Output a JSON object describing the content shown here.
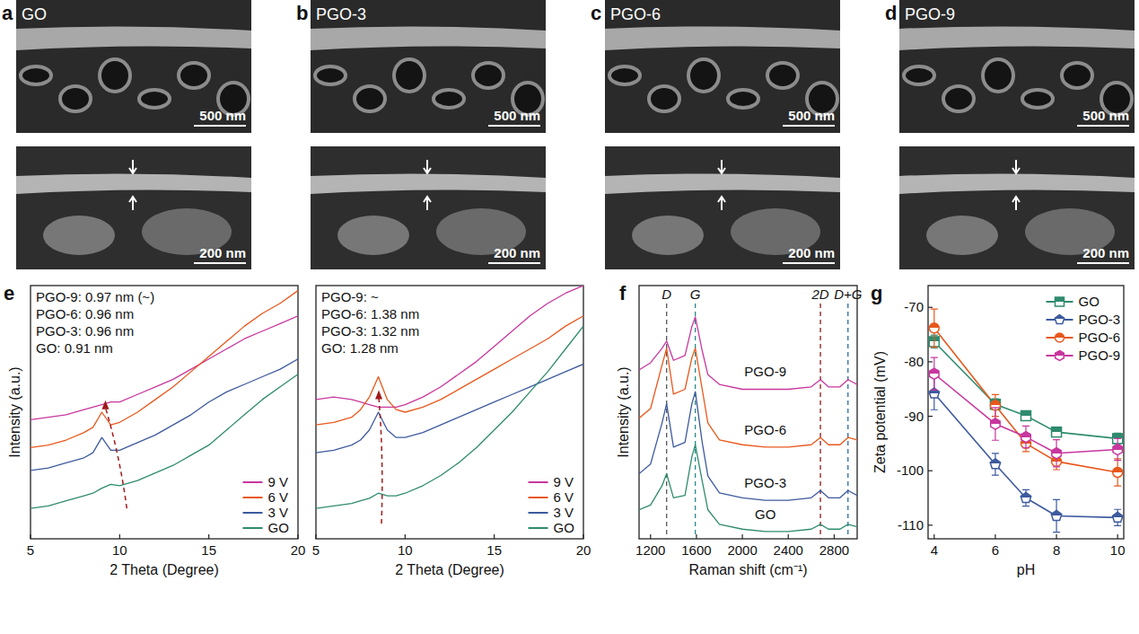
{
  "images": [
    {
      "panel": "a",
      "title": "GO",
      "scale_bars": [
        "500 nm",
        "200 nm"
      ]
    },
    {
      "panel": "b",
      "title": "PGO-3",
      "scale_bars": [
        "500 nm",
        "200 nm"
      ]
    },
    {
      "panel": "c",
      "title": "PGO-6",
      "scale_bars": [
        "500 nm",
        "200 nm"
      ]
    },
    {
      "panel": "d",
      "title": "PGO-9",
      "scale_bars": [
        "500 nm",
        "200 nm"
      ]
    }
  ],
  "chart_data": [
    {
      "type": "line",
      "panel": "e",
      "x_label": "2 Theta (Degree)",
      "y_label": "Intensity (a.u.)",
      "annotations": [
        "PGO-9: 0.97 nm (~)",
        "PGO-6: 0.96 nm",
        "PGO-3: 0.96 nm",
        "GO: 0.91 nm"
      ],
      "x": [
        5,
        6,
        7,
        8,
        8.5,
        9,
        9.5,
        10,
        11,
        12,
        13,
        14,
        15,
        16,
        17,
        18,
        19,
        20
      ],
      "xlim": [
        5,
        20
      ],
      "xticks": [
        5,
        10,
        15,
        20
      ],
      "ylim": [
        0,
        100
      ],
      "tick_labels": "x",
      "legend": "lower right",
      "series": [
        {
          "name": "9 V",
          "color": "#c8379e",
          "values": [
            47,
            48,
            49,
            51,
            52,
            53,
            54,
            54,
            57,
            60,
            63,
            67,
            71,
            75,
            79,
            82,
            85,
            88
          ]
        },
        {
          "name": "6 V",
          "color": "#e8581c",
          "values": [
            36,
            37,
            39,
            42,
            44,
            50,
            45,
            46,
            50,
            55,
            60,
            66,
            72,
            78,
            84,
            89,
            93,
            98
          ]
        },
        {
          "name": "3 V",
          "color": "#3d5a9e",
          "values": [
            27,
            28,
            30,
            32,
            34,
            40,
            35,
            35,
            38,
            41,
            45,
            49,
            54,
            58,
            61,
            64,
            67,
            71
          ]
        },
        {
          "name": "GO",
          "color": "#2e8b6e",
          "values": [
            12,
            13,
            15,
            17,
            18,
            20,
            21.5,
            21,
            23,
            26,
            29,
            33,
            37,
            43,
            49,
            55,
            60,
            65
          ]
        }
      ]
    },
    {
      "type": "line",
      "x_label": "2 Theta (Degree)",
      "annotations": [
        "PGO-9: ~",
        "PGO-6: 1.38 nm",
        "PGO-3: 1.32 nm",
        "GO: 1.28 nm"
      ],
      "x": [
        5,
        6,
        7,
        7.5,
        8,
        8.5,
        9,
        9.5,
        10,
        11,
        12,
        13,
        14,
        15,
        16,
        17,
        18,
        19,
        20
      ],
      "xlim": [
        5,
        20
      ],
      "xticks": [
        5,
        10,
        15,
        20
      ],
      "ylim": [
        0,
        100
      ],
      "tick_labels": "x",
      "legend": "lower right",
      "series": [
        {
          "name": "9 V",
          "color": "#c8379e",
          "values": [
            55,
            56,
            55,
            54,
            53,
            52,
            52,
            52,
            53,
            56,
            60,
            65,
            70,
            76,
            82,
            88,
            93,
            97,
            100
          ]
        },
        {
          "name": "6 V",
          "color": "#e8581c",
          "values": [
            45,
            46,
            48,
            51,
            56,
            64,
            55,
            51,
            50,
            52,
            55,
            59,
            63,
            67,
            71,
            75,
            79,
            84,
            88
          ]
        },
        {
          "name": "3 V",
          "color": "#3d5a9e",
          "values": [
            34,
            35,
            37,
            39,
            43,
            50,
            43,
            40,
            40,
            42,
            45,
            48,
            51,
            54,
            57,
            60,
            63,
            66,
            69
          ]
        },
        {
          "name": "GO",
          "color": "#2e8b6e",
          "values": [
            12,
            13,
            14,
            15,
            16,
            18,
            17,
            17,
            18,
            21,
            25,
            30,
            36,
            43,
            50,
            58,
            66,
            75,
            84
          ]
        }
      ]
    },
    {
      "type": "line",
      "panel": "f",
      "x_label": "Raman shift (cm⁻¹)",
      "y_label": "Intensity (a.u.)",
      "x": [
        1100,
        1200,
        1300,
        1340,
        1400,
        1500,
        1560,
        1590,
        1650,
        1700,
        1800,
        2000,
        2200,
        2400,
        2600,
        2680,
        2750,
        2850,
        2920,
        3000
      ],
      "xlim": [
        1100,
        3000
      ],
      "xticks": [
        1200,
        1600,
        2000,
        2400,
        2800
      ],
      "ylim": [
        0,
        105
      ],
      "tick_labels": "x",
      "reference_lines": [
        {
          "label": "D",
          "x": 1340,
          "color": "#555555"
        },
        {
          "label": "G",
          "x": 1590,
          "color": "#2a8a8a"
        },
        {
          "label": "2D",
          "x": 2680,
          "color": "#8b1a1a"
        },
        {
          "label": "D+G",
          "x": 2920,
          "color": "#2a6aa8"
        }
      ],
      "series": [
        {
          "name": "GO",
          "color": "#2e8b6e",
          "values": [
            12,
            14,
            22,
            27,
            17,
            18,
            34,
            39,
            24,
            12,
            6,
            4,
            3,
            3,
            4,
            6,
            4,
            4,
            6,
            5
          ]
        },
        {
          "name": "PGO-3",
          "color": "#3d5a9e",
          "values": [
            27,
            31,
            48,
            56,
            38,
            40,
            56,
            61,
            40,
            26,
            19,
            17,
            16,
            16,
            17,
            20,
            17,
            17,
            20,
            18
          ]
        },
        {
          "name": "PGO-6",
          "color": "#e8581c",
          "values": [
            50,
            54,
            72,
            79,
            60,
            62,
            75,
            79,
            62,
            48,
            41,
            39,
            38,
            38,
            39,
            42,
            39,
            39,
            42,
            41
          ]
        },
        {
          "name": "PGO-9",
          "color": "#c8379e",
          "values": [
            70,
            73,
            79,
            82,
            74,
            76,
            88,
            92,
            78,
            68,
            64,
            62,
            62,
            62,
            63,
            66,
            63,
            63,
            66,
            64
          ]
        }
      ]
    },
    {
      "type": "line",
      "panel": "g",
      "x_label": "pH",
      "y_label": "Zeta potential (mV)",
      "x": [
        4,
        6,
        7,
        8,
        10
      ],
      "xlim": [
        3.8,
        10.2
      ],
      "xticks": [
        4,
        6,
        8,
        10
      ],
      "ylim": [
        -112.5,
        -66
      ],
      "yticks": [
        -110,
        -100,
        -90,
        -80,
        -70
      ],
      "legend": "upper right",
      "series": [
        {
          "name": "GO",
          "color": "#2e8b6e",
          "marker": "square",
          "values": [
            -76.3,
            -87.8,
            -89.9,
            -92.9,
            -94.1
          ],
          "errors": [
            1.2,
            1.0,
            0.8,
            0.8,
            1.0
          ]
        },
        {
          "name": "PGO-3",
          "color": "#3d5a9e",
          "marker": "pentagon",
          "values": [
            -85.8,
            -98.8,
            -105.0,
            -108.3,
            -108.6
          ],
          "errors": [
            3.0,
            2.0,
            1.5,
            3.0,
            1.5
          ]
        },
        {
          "name": "PGO-6",
          "color": "#e8581c",
          "marker": "circle",
          "values": [
            -73.8,
            -88.0,
            -95.0,
            -98.3,
            -100.3
          ],
          "errors": [
            3.5,
            2.0,
            1.5,
            1.5,
            2.5
          ]
        },
        {
          "name": "PGO-9",
          "color": "#c8379e",
          "marker": "hexagon",
          "values": [
            -82.2,
            -91.4,
            -93.8,
            -96.8,
            -96.1
          ],
          "errors": [
            3.0,
            3.0,
            2.0,
            2.5,
            2.0
          ]
        }
      ]
    }
  ]
}
